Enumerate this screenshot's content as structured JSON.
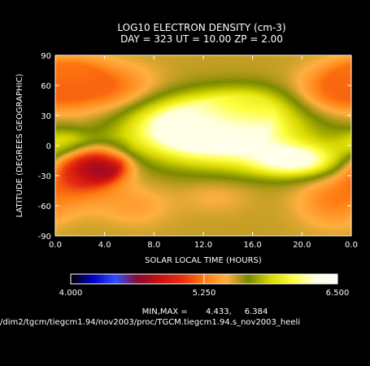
{
  "chart_data": {
    "type": "heatmap",
    "title": "LOG10 ELECTRON DENSITY (cm-3)",
    "subtitle": "DAY = 323   UT = 10.00   ZP =    2.00",
    "xlabel": "SOLAR LOCAL TIME (HOURS)",
    "ylabel": "LATITUDE (DEGREES GEOGRAPHIC)",
    "x_ticks": [
      "0.0",
      "4.0",
      "8.0",
      "12.0",
      "16.0",
      "20.0",
      "0.0"
    ],
    "y_ticks": [
      "90",
      "60",
      "30",
      "0",
      "-30",
      "-60",
      "-90"
    ],
    "xlim": [
      0,
      24
    ],
    "ylim": [
      -90,
      90
    ],
    "colorbar": {
      "min_label": "4.000",
      "mid_label": "5.250",
      "max_label": "6.500",
      "range": [
        4.0,
        6.5
      ]
    },
    "minmax_text": "MIN,MAX =       4.433,     6.384",
    "footer_path": "/dim2/tgcm/tiegcm1.94/nov2003/proc/TGCM.tiegcm1.94.s_nov2003_heeli",
    "blobs": [
      {
        "x": 14,
        "y": 10,
        "v": 6.3,
        "sx": 4.5,
        "sy": 22
      },
      {
        "x": 11,
        "y": 20,
        "v": 6.25,
        "sx": 3.2,
        "sy": 18
      },
      {
        "x": 19.5,
        "y": -15,
        "v": 6.28,
        "sx": 2.5,
        "sy": 11
      },
      {
        "x": 15.5,
        "y": 40,
        "v": 5.85,
        "sx": 2.5,
        "sy": 14
      },
      {
        "x": 1,
        "y": 2,
        "v": 5.95,
        "sx": 1.6,
        "sy": 10
      },
      {
        "x": 5,
        "y": 0,
        "v": 5.65,
        "sx": 1.5,
        "sy": 12
      },
      {
        "x": 3.5,
        "y": -20,
        "v": 4.43,
        "sx": 1.4,
        "sy": 10
      },
      {
        "x": 2.2,
        "y": -28,
        "v": 5.05,
        "sx": 2.0,
        "sy": 18
      },
      {
        "x": 3.8,
        "y": 58,
        "v": 5.2,
        "sx": 2.8,
        "sy": 16
      },
      {
        "x": 1,
        "y": 72,
        "v": 5.3,
        "sx": 2.0,
        "sy": 12
      },
      {
        "x": 23,
        "y": 55,
        "v": 5.2,
        "sx": 2.3,
        "sy": 16
      },
      {
        "x": 22.5,
        "y": -55,
        "v": 5.3,
        "sx": 2.0,
        "sy": 18
      },
      {
        "x": 6.5,
        "y": -60,
        "v": 5.4,
        "sx": 2.0,
        "sy": 14
      },
      {
        "x": 13,
        "y": -50,
        "v": 5.45,
        "sx": 2.0,
        "sy": 12
      }
    ],
    "baseline_value": 5.55
  },
  "colors": {
    "background": "#000000",
    "foreground": "#ffffff",
    "colormap": [
      "#000000",
      "#0000c8",
      "#3050ff",
      "#8a0a30",
      "#c81010",
      "#e83010",
      "#ff7a10",
      "#ffb040",
      "#7a8a00",
      "#d8d800",
      "#ffff40",
      "#ffffe0",
      "#ffffff"
    ]
  }
}
